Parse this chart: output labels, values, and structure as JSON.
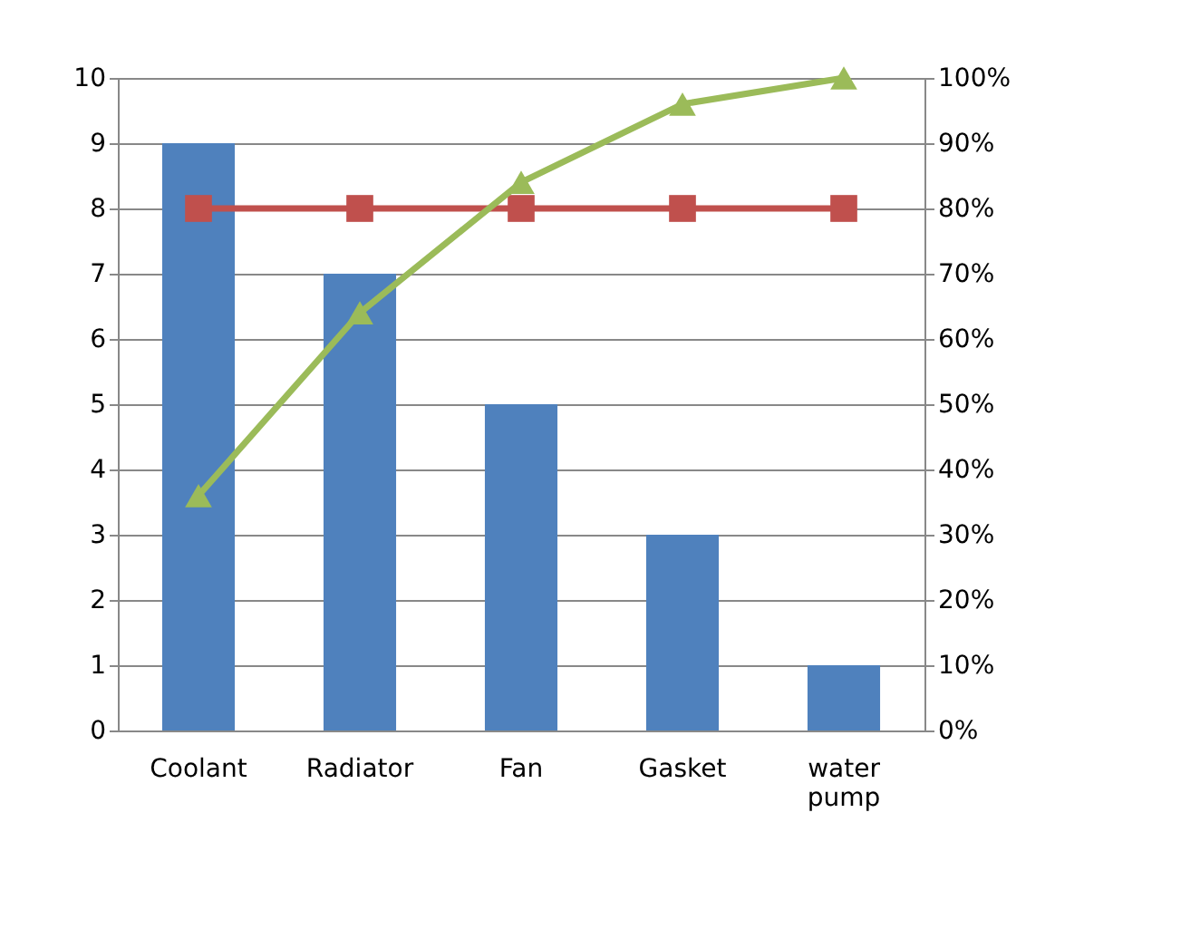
{
  "chart_data": {
    "type": "bar",
    "categories": [
      "Coolant",
      "Radiator",
      "Fan",
      "Gasket",
      "water pump"
    ],
    "series": [
      {
        "color": "#4f81bd",
        "values": [
          9,
          7,
          5,
          3,
          1
        ]
      },
      {
        "type": "line",
        "axis": "y2",
        "color": "#c0504d",
        "marker": "square",
        "values": [
          80,
          80,
          80,
          80,
          80
        ]
      },
      {
        "type": "line",
        "axis": "y2",
        "color": "#9bbb59",
        "marker": "triangle",
        "values": [
          36,
          64,
          84,
          96,
          100
        ]
      }
    ],
    "ylim": [
      0,
      10
    ],
    "yticks": [
      0,
      1,
      2,
      3,
      4,
      5,
      6,
      7,
      8,
      9,
      10
    ],
    "y2lim": [
      0,
      100
    ],
    "y2ticks": [
      {
        "value": 0,
        "label": "0%"
      },
      {
        "value": 10,
        "label": "10%"
      },
      {
        "value": 20,
        "label": "20%"
      },
      {
        "value": 30,
        "label": "30%"
      },
      {
        "value": 40,
        "label": "40%"
      },
      {
        "value": 50,
        "label": "50%"
      },
      {
        "value": 60,
        "label": "60%"
      },
      {
        "value": 70,
        "label": "70%"
      },
      {
        "value": 80,
        "label": "80%"
      },
      {
        "value": 90,
        "label": "90%"
      },
      {
        "value": 100,
        "label": "100%"
      }
    ],
    "grid": "y",
    "line_style": "solid"
  }
}
